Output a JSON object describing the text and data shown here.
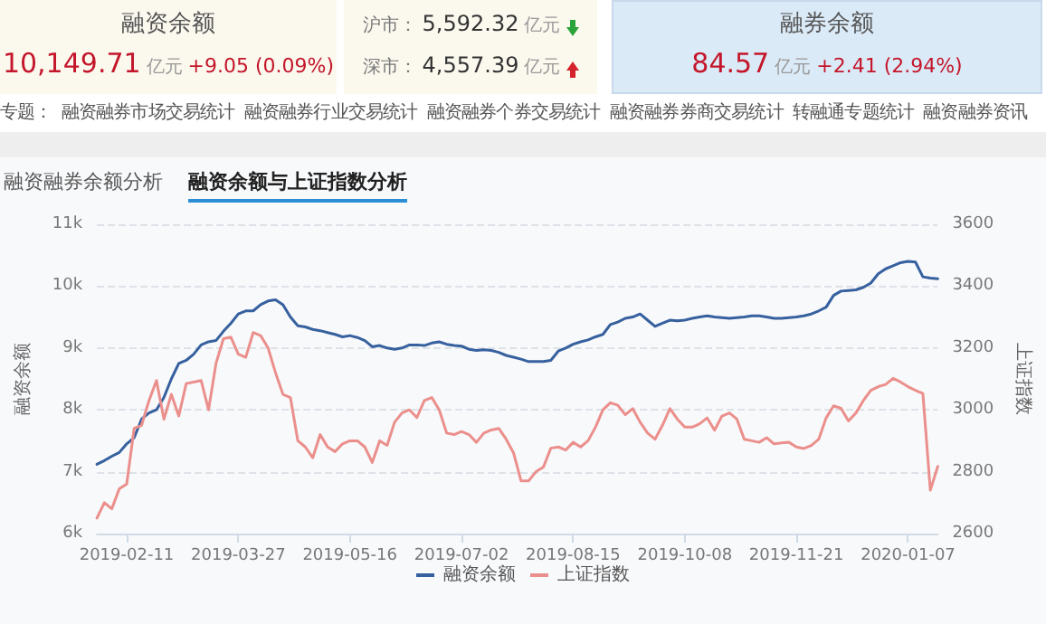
{
  "chart_data": [
    {
      "type": "other",
      "annotations": [
        "融资余额",
        "10,149.71",
        "亿元",
        "+9.05 (0.09%)",
        "沪市：",
        "5,592.32",
        "亿元",
        "深市：",
        "4,557.39",
        "亿元",
        "融券余额",
        "84.57",
        "亿元",
        "+2.41 (2.94%)",
        "专题：",
        "融资融券市场交易统计",
        "融资融券行业交易统计",
        "融资融券个券交易统计",
        "融资融券券商交易统计",
        "转融通专题统计",
        "融资融券资讯",
        "融资融券余额分析",
        "融资余额与上证指数分析"
      ]
    },
    {
      "type": "line",
      "ylabel": "融资余额",
      "y2label": "上证指数",
      "categories": [
        null,
        null,
        null,
        null,
        "2019-02-11",
        null,
        null,
        null,
        null,
        null,
        null,
        null,
        null,
        null,
        null,
        null,
        null,
        null,
        null,
        "2019-03-27",
        null,
        null,
        null,
        null,
        null,
        null,
        null,
        null,
        null,
        null,
        null,
        null,
        null,
        null,
        "2019-05-16",
        null,
        null,
        null,
        null,
        null,
        null,
        null,
        null,
        null,
        null,
        null,
        null,
        null,
        null,
        "2019-07-02",
        null,
        null,
        null,
        null,
        null,
        null,
        null,
        null,
        null,
        null,
        null,
        null,
        null,
        null,
        "2019-08-15",
        null,
        null,
        null,
        null,
        null,
        null,
        null,
        null,
        null,
        null,
        null,
        null,
        null,
        null,
        "2019-10-08",
        null,
        null,
        null,
        null,
        null,
        null,
        null,
        null,
        null,
        null,
        null,
        null,
        null,
        null,
        "2019-11-21",
        null,
        null,
        null,
        null,
        null,
        null,
        null,
        null,
        null,
        null,
        null,
        null,
        null,
        null,
        "2020-01-07",
        null,
        null,
        null,
        null
      ],
      "series": [
        {
          "name": "融资余额",
          "color": "#36609e",
          "values": [
            7120,
            7180,
            7250,
            7310,
            7450,
            7550,
            7850,
            7950,
            8000,
            8200,
            8500,
            8750,
            8800,
            8900,
            9050,
            9100,
            9120,
            9270,
            9400,
            9550,
            9600,
            9600,
            9700,
            9760,
            9780,
            9700,
            9500,
            9360,
            9340,
            9300,
            9280,
            9250,
            9220,
            9180,
            9200,
            9170,
            9120,
            9020,
            9040,
            9000,
            8980,
            9000,
            9050,
            9050,
            9040,
            9080,
            9100,
            9060,
            9040,
            9030,
            8980,
            8960,
            8970,
            8960,
            8930,
            8880,
            8850,
            8820,
            8780,
            8780,
            8780,
            8800,
            8950,
            9000,
            9060,
            9100,
            9130,
            9180,
            9220,
            9380,
            9420,
            9480,
            9500,
            9550,
            9450,
            9350,
            9400,
            9450,
            9440,
            9450,
            9480,
            9500,
            9520,
            9500,
            9490,
            9480,
            9490,
            9500,
            9520,
            9520,
            9500,
            9480,
            9480,
            9490,
            9500,
            9520,
            9550,
            9600,
            9660,
            9850,
            9920,
            9930,
            9940,
            9980,
            10050,
            10200,
            10280,
            10330,
            10380,
            10400,
            10390,
            10150,
            10130,
            10120
          ]
        },
        {
          "name": "上证指数",
          "color": "#eb8f8c",
          "axis": "y2",
          "values": [
            2650,
            2700,
            2680,
            2745,
            2760,
            2940,
            2950,
            3030,
            3095,
            2970,
            3050,
            2980,
            3085,
            3090,
            3095,
            3000,
            3150,
            3230,
            3235,
            3180,
            3170,
            3250,
            3240,
            3200,
            3120,
            3050,
            3040,
            2900,
            2880,
            2845,
            2920,
            2880,
            2865,
            2890,
            2900,
            2900,
            2880,
            2830,
            2900,
            2885,
            2960,
            2990,
            3000,
            2975,
            3030,
            3040,
            3000,
            2925,
            2920,
            2930,
            2920,
            2895,
            2925,
            2935,
            2940,
            2905,
            2860,
            2770,
            2770,
            2800,
            2815,
            2876,
            2880,
            2870,
            2895,
            2880,
            2900,
            2944,
            3000,
            3023,
            3015,
            2984,
            3004,
            2960,
            2925,
            2905,
            2950,
            3004,
            2970,
            2944,
            2944,
            2955,
            2974,
            2934,
            2980,
            2990,
            2970,
            2905,
            2900,
            2895,
            2910,
            2890,
            2893,
            2895,
            2880,
            2875,
            2885,
            2905,
            2974,
            3013,
            3005,
            2964,
            2990,
            3030,
            3063,
            3075,
            3082,
            3102,
            3090,
            3075,
            3063,
            3053,
            2740,
            2817
          ]
        }
      ],
      "ylim": [
        6000,
        11000
      ],
      "yticks": [
        {
          "value": 6000,
          "label": "6k"
        },
        {
          "value": 7000,
          "label": "7k"
        },
        {
          "value": 8000,
          "label": "8k"
        },
        {
          "value": 9000,
          "label": "9k"
        },
        {
          "value": 10000,
          "label": "10k"
        },
        {
          "value": 11000,
          "label": "11k"
        }
      ],
      "y2lim": [
        2600,
        3600
      ],
      "y2ticks": [
        2600,
        2800,
        3000,
        3200,
        3400,
        3600
      ],
      "grid": "y",
      "legend": "bottom",
      "marker": "none"
    }
  ]
}
